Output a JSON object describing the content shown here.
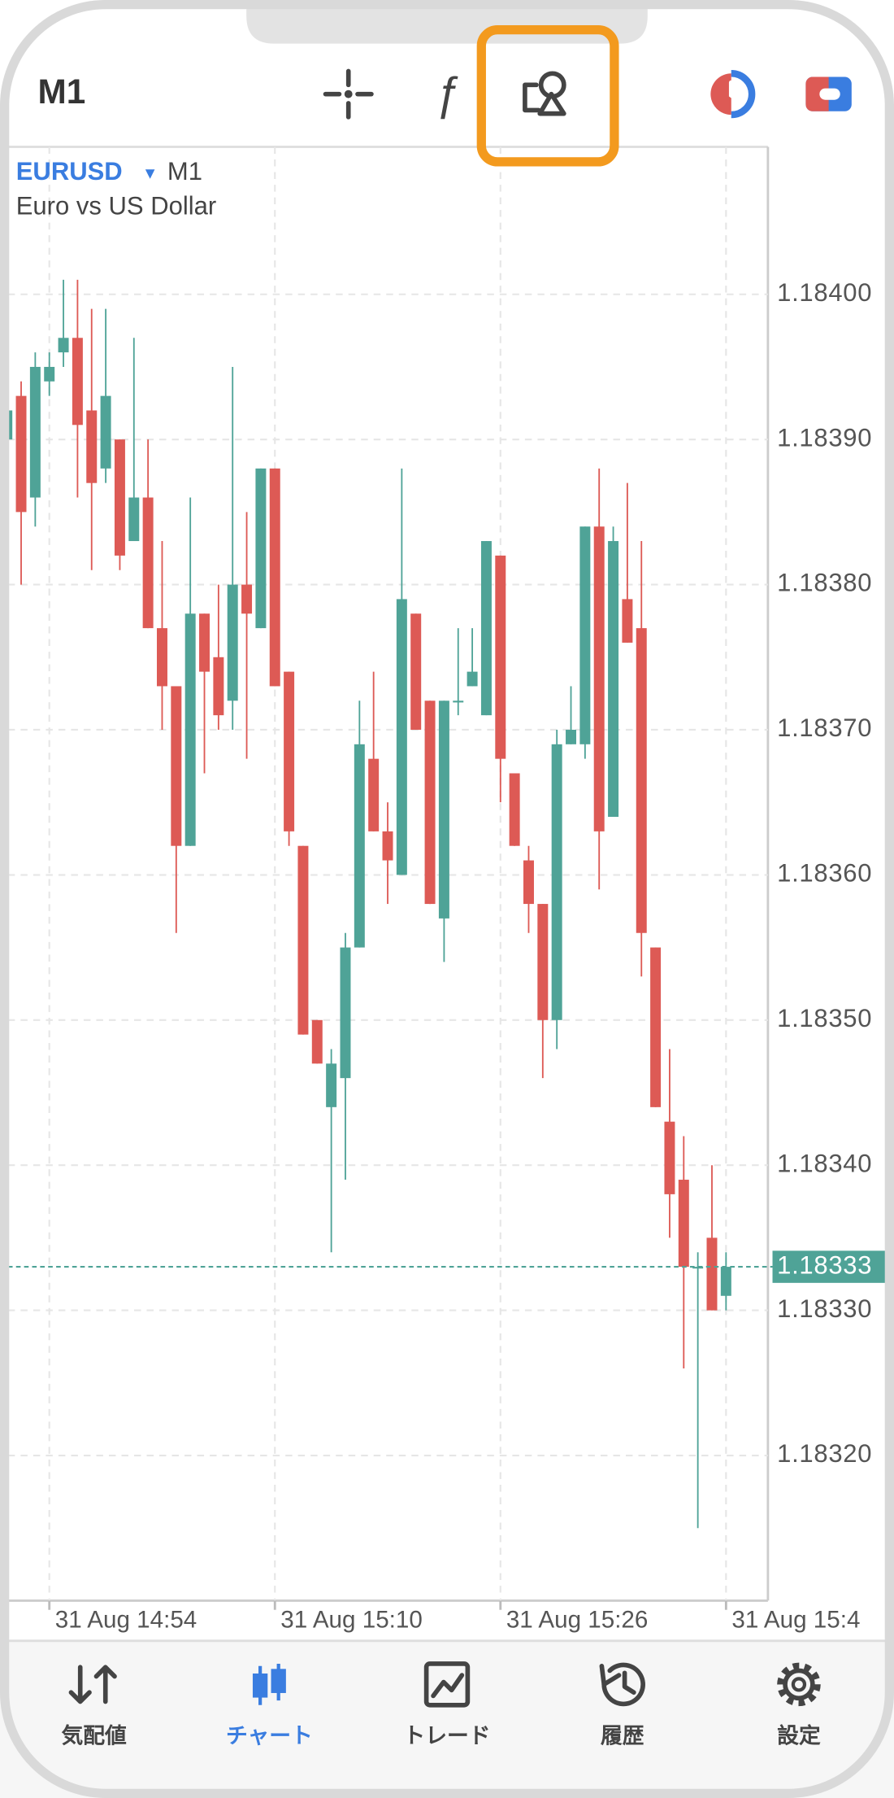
{
  "toolbar": {
    "timeframe": "M1"
  },
  "chart_data": {
    "type": "candlestick",
    "symbol": "EURUSD",
    "timeframe": "M1",
    "description": "Euro vs US Dollar",
    "categories": [
      null,
      null,
      null,
      "31 Aug 14:54",
      null,
      null,
      null,
      null,
      null,
      null,
      null,
      null,
      null,
      null,
      null,
      null,
      null,
      null,
      null,
      "31 Aug 15:10",
      null,
      null,
      null,
      null,
      null,
      null,
      null,
      null,
      null,
      null,
      null,
      null,
      null,
      null,
      null,
      "31 Aug 15:26",
      null,
      null,
      null,
      null,
      null,
      null,
      null,
      null,
      null,
      null,
      null,
      null,
      null,
      null,
      null,
      "31 Aug 15:4"
    ],
    "open": [
      1.1839,
      1.18393,
      1.18386,
      1.18394,
      1.18396,
      1.18397,
      1.18392,
      1.18388,
      1.1839,
      1.18383,
      1.18386,
      1.18377,
      1.18373,
      1.18362,
      1.18378,
      1.18375,
      1.18372,
      1.1838,
      1.18377,
      1.18388,
      1.18374,
      1.18362,
      1.1835,
      1.18344,
      1.18346,
      1.18355,
      1.18368,
      1.18363,
      1.1836,
      1.18378,
      1.18372,
      1.18357,
      1.18372,
      1.18373,
      1.18371,
      1.18382,
      1.18367,
      1.18361,
      1.18358,
      1.1835,
      1.18369,
      1.18369,
      1.18384,
      1.18364,
      1.18379,
      1.18377,
      1.18355,
      1.18343,
      1.18339,
      1.18333,
      1.18335,
      1.18331
    ],
    "high": [
      1.18393,
      1.18394,
      1.18396,
      1.18396,
      1.18401,
      1.18401,
      1.18399,
      1.18399,
      1.1839,
      1.18397,
      1.1839,
      1.18383,
      1.18373,
      1.18386,
      1.18378,
      1.1838,
      1.18395,
      1.18385,
      1.18388,
      1.18388,
      1.18374,
      1.18362,
      1.1835,
      1.18348,
      1.18356,
      1.18372,
      1.18374,
      1.18365,
      1.18388,
      1.18378,
      1.18372,
      1.18372,
      1.18377,
      1.18377,
      1.18383,
      1.18382,
      1.18367,
      1.18362,
      1.18358,
      1.1837,
      1.18373,
      1.18384,
      1.18388,
      1.18384,
      1.18387,
      1.18383,
      1.18355,
      1.18348,
      1.18342,
      1.18334,
      1.1834,
      1.18334
    ],
    "low": [
      1.18389,
      1.1838,
      1.18384,
      1.18393,
      1.18395,
      1.18386,
      1.18381,
      1.18387,
      1.18381,
      1.18383,
      1.18377,
      1.1837,
      1.18356,
      1.18362,
      1.18367,
      1.1837,
      1.1837,
      1.18368,
      1.18377,
      1.18373,
      1.18362,
      1.18349,
      1.18347,
      1.18334,
      1.18339,
      1.18355,
      1.18363,
      1.18358,
      1.1836,
      1.1837,
      1.18358,
      1.18354,
      1.18371,
      1.18373,
      1.18371,
      1.18365,
      1.18362,
      1.18356,
      1.18346,
      1.18348,
      1.18369,
      1.18368,
      1.18359,
      1.18364,
      1.18376,
      1.18353,
      1.18344,
      1.18335,
      1.18326,
      1.18315,
      1.1833,
      1.1833
    ],
    "close": [
      1.18392,
      1.18385,
      1.18395,
      1.18395,
      1.18397,
      1.18391,
      1.18387,
      1.18393,
      1.18382,
      1.18386,
      1.18377,
      1.18373,
      1.18362,
      1.18378,
      1.18374,
      1.18371,
      1.1838,
      1.18378,
      1.18388,
      1.18373,
      1.18363,
      1.18349,
      1.18347,
      1.18347,
      1.18355,
      1.18369,
      1.18363,
      1.18361,
      1.18379,
      1.1837,
      1.18358,
      1.18372,
      1.18372,
      1.18374,
      1.18383,
      1.18368,
      1.18362,
      1.18358,
      1.1835,
      1.18369,
      1.1837,
      1.18384,
      1.18363,
      1.18383,
      1.18376,
      1.18356,
      1.18344,
      1.18338,
      1.18333,
      1.18333,
      1.1833,
      1.18333
    ],
    "up_color": "#4fa397",
    "down_color": "#dd5a55",
    "ylim": [
      1.1831,
      1.1841
    ],
    "yticks": [
      {
        "value": 1.1832,
        "label": "1.18320"
      },
      {
        "value": 1.1833,
        "label": "1.18330"
      },
      {
        "value": 1.1834,
        "label": "1.18340"
      },
      {
        "value": 1.1835,
        "label": "1.18350"
      },
      {
        "value": 1.1836,
        "label": "1.18360"
      },
      {
        "value": 1.1837,
        "label": "1.18370"
      },
      {
        "value": 1.1838,
        "label": "1.18380"
      },
      {
        "value": 1.1839,
        "label": "1.18390"
      },
      {
        "value": 1.184,
        "label": "1.18400"
      }
    ],
    "current_price": 1.18333,
    "grid": true
  },
  "tabs": [
    {
      "label": "気配値"
    },
    {
      "label": "チャート"
    },
    {
      "label": "トレード"
    },
    {
      "label": "履歴"
    },
    {
      "label": "設定"
    }
  ]
}
